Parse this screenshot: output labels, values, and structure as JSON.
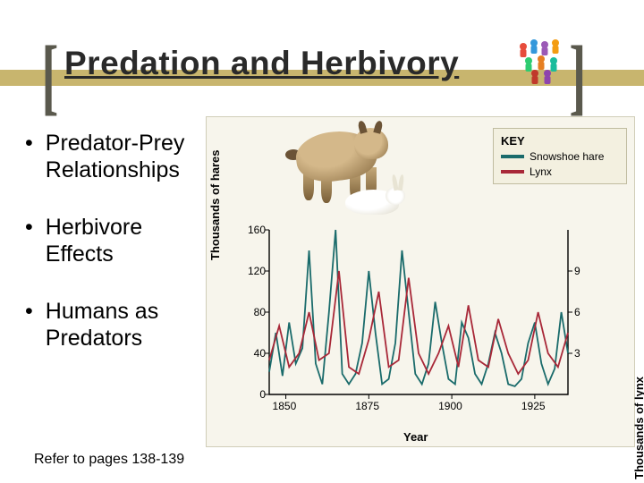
{
  "title": "Predation and Herbivory",
  "bullets": [
    "Predator-Prey Relationships",
    "Herbivore Effects",
    "Humans as Predators"
  ],
  "footer": "Refer to pages 138-139",
  "people_colors": [
    "#e74c3c",
    "#3498db",
    "#9b59b6",
    "#f39c12",
    "#2ecc71",
    "#e67e22",
    "#1abc9c",
    "#c0392b",
    "#8e44ad"
  ],
  "chart": {
    "type": "line",
    "background_color": "#f7f5ec",
    "key": {
      "title": "KEY",
      "items": [
        {
          "label": "Snowshoe hare",
          "color": "#1a6b6b"
        },
        {
          "label": "Lynx",
          "color": "#a82838"
        }
      ]
    },
    "x": {
      "label": "Year",
      "min": 1845,
      "max": 1935,
      "ticks": [
        1850,
        1875,
        1900,
        1925
      ]
    },
    "y_left": {
      "label": "Thousands of hares",
      "min": 0,
      "max": 160,
      "ticks": [
        0,
        40,
        80,
        120,
        160
      ]
    },
    "y_right": {
      "label": "Thousands of lynx",
      "min": 0,
      "max": 12,
      "ticks": [
        3,
        6,
        9
      ]
    },
    "series_hare": {
      "color": "#1a6b6b",
      "points": [
        [
          1845,
          22
        ],
        [
          1847,
          60
        ],
        [
          1849,
          18
        ],
        [
          1851,
          70
        ],
        [
          1853,
          30
        ],
        [
          1855,
          45
        ],
        [
          1857,
          140
        ],
        [
          1859,
          30
        ],
        [
          1861,
          10
        ],
        [
          1863,
          80
        ],
        [
          1865,
          160
        ],
        [
          1867,
          20
        ],
        [
          1869,
          10
        ],
        [
          1871,
          20
        ],
        [
          1873,
          50
        ],
        [
          1875,
          120
        ],
        [
          1877,
          60
        ],
        [
          1879,
          10
        ],
        [
          1881,
          15
        ],
        [
          1883,
          50
        ],
        [
          1885,
          140
        ],
        [
          1887,
          80
        ],
        [
          1889,
          20
        ],
        [
          1891,
          10
        ],
        [
          1893,
          30
        ],
        [
          1895,
          90
        ],
        [
          1897,
          50
        ],
        [
          1899,
          15
        ],
        [
          1901,
          10
        ],
        [
          1903,
          70
        ],
        [
          1905,
          55
        ],
        [
          1907,
          20
        ],
        [
          1909,
          10
        ],
        [
          1911,
          30
        ],
        [
          1913,
          60
        ],
        [
          1915,
          40
        ],
        [
          1917,
          10
        ],
        [
          1919,
          8
        ],
        [
          1921,
          15
        ],
        [
          1923,
          50
        ],
        [
          1925,
          70
        ],
        [
          1927,
          30
        ],
        [
          1929,
          10
        ],
        [
          1931,
          25
        ],
        [
          1933,
          80
        ],
        [
          1935,
          40
        ]
      ]
    },
    "series_lynx": {
      "color": "#a82838",
      "points": [
        [
          1845,
          2.5
        ],
        [
          1848,
          5
        ],
        [
          1851,
          2
        ],
        [
          1854,
          3
        ],
        [
          1857,
          6
        ],
        [
          1860,
          2.5
        ],
        [
          1863,
          3
        ],
        [
          1866,
          9
        ],
        [
          1869,
          2
        ],
        [
          1872,
          1.5
        ],
        [
          1875,
          4
        ],
        [
          1878,
          7.5
        ],
        [
          1881,
          2
        ],
        [
          1884,
          2.5
        ],
        [
          1887,
          8.5
        ],
        [
          1890,
          3
        ],
        [
          1893,
          1.5
        ],
        [
          1896,
          3
        ],
        [
          1899,
          5
        ],
        [
          1902,
          2
        ],
        [
          1905,
          6.5
        ],
        [
          1908,
          2.5
        ],
        [
          1911,
          2
        ],
        [
          1914,
          5.5
        ],
        [
          1917,
          3
        ],
        [
          1920,
          1.5
        ],
        [
          1923,
          2.5
        ],
        [
          1926,
          6
        ],
        [
          1929,
          3
        ],
        [
          1932,
          2
        ],
        [
          1935,
          4.5
        ]
      ]
    }
  }
}
